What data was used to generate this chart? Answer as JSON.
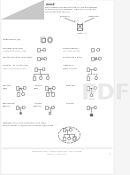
{
  "bg_color": "#f5f5f5",
  "text_color": "#444444",
  "symbol_color": "#666666",
  "light_gray": "#aaaaaa",
  "header_gray": "#c8c8c8",
  "pdf_watermark_color": "#cccccc"
}
